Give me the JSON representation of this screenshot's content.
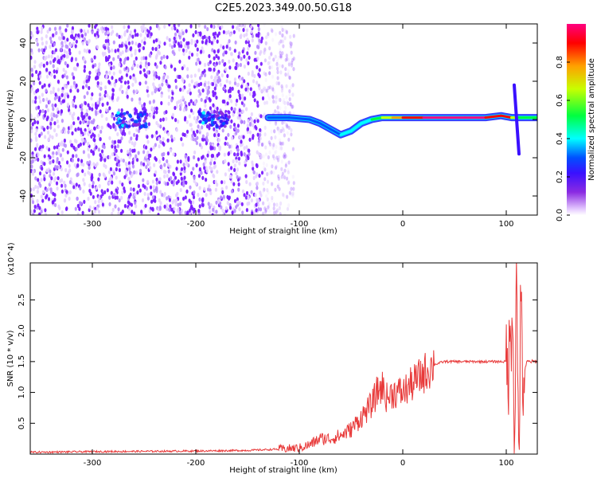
{
  "title": "C2E5.2023.349.00.50.G18",
  "colors": {
    "noise_violet": "#7a1cff",
    "signal_red": "#e8202a",
    "snr_line": "#e83a3a",
    "axis": "#000000"
  },
  "chart_data": [
    {
      "type": "heatmap",
      "xlabel": "Height of straight line (km)",
      "ylabel": "Frequency (Hz)",
      "xlim": [
        -360,
        130
      ],
      "ylim": [
        -50,
        50
      ],
      "x_ticks": [
        -300,
        -200,
        -100,
        0,
        100
      ],
      "y_ticks": [
        -40,
        -20,
        0,
        20,
        40
      ],
      "colorbar": {
        "label": "Normalized spectral amplitude",
        "range": [
          0.0,
          1.0
        ],
        "ticks": [
          "0.0",
          "0.2",
          "0.4",
          "0.6",
          "0.8"
        ],
        "colormap": [
          "#ffffff",
          "#e6ccff",
          "#8a2be2",
          "#3a10ff",
          "#0050ff",
          "#00ffff",
          "#00ff40",
          "#c8ff00",
          "#ffa000",
          "#ff0000",
          "#ff0080"
        ]
      },
      "noise_region_x": [
        -360,
        -135
      ],
      "signal_trace": {
        "x": [
          -130,
          -110,
          -90,
          -80,
          -70,
          -60,
          -50,
          -40,
          -30,
          -20,
          -10,
          0,
          20,
          40,
          60,
          80,
          95,
          105,
          110,
          130
        ],
        "freq": [
          1,
          1,
          0,
          -2,
          -5,
          -8,
          -6,
          -2,
          0,
          1,
          1,
          1,
          1,
          1,
          1,
          1,
          2,
          1,
          1,
          1
        ],
        "amplitude": [
          0.35,
          0.4,
          0.35,
          0.35,
          0.4,
          0.45,
          0.45,
          0.5,
          0.6,
          0.7,
          0.8,
          0.9,
          0.95,
          0.95,
          0.95,
          0.9,
          0.85,
          0.7,
          0.6,
          0.95
        ]
      },
      "spike_x": 110,
      "spike_freq_range": [
        -18,
        18
      ],
      "noise_clusters": [
        {
          "x": -270,
          "freq": 0,
          "amplitude": 0.45
        },
        {
          "x": -255,
          "freq": 0,
          "amplitude": 0.4
        },
        {
          "x": -190,
          "freq": 0,
          "amplitude": 0.45
        },
        {
          "x": -175,
          "freq": 0,
          "amplitude": 0.35
        }
      ]
    },
    {
      "type": "line",
      "xlabel": "Height of straight line (km)",
      "ylabel": "SNR (10 * v/v)",
      "y_multiplier": "(x10^4)",
      "xlim": [
        -360,
        130
      ],
      "ylim": [
        0,
        3.1
      ],
      "x_ticks": [
        -300,
        -200,
        -100,
        0,
        100
      ],
      "y_ticks": [
        0.5,
        1.0,
        1.5,
        2.0,
        2.5
      ],
      "series": [
        {
          "x": [
            -360,
            -300,
            -200,
            -150,
            -120,
            -100,
            -90,
            -80,
            -70,
            -60,
            -50,
            -40,
            -30,
            -25,
            -20,
            -15,
            -10,
            0,
            10,
            20,
            30,
            40,
            60,
            80,
            100,
            103,
            106,
            108,
            110,
            112,
            114,
            116,
            120,
            130
          ],
          "values": [
            0.03,
            0.04,
            0.05,
            0.06,
            0.08,
            0.1,
            0.15,
            0.25,
            0.25,
            0.3,
            0.4,
            0.6,
            0.8,
            1.0,
            1.1,
            0.9,
            1.0,
            1.0,
            1.15,
            1.3,
            1.45,
            1.5,
            1.5,
            1.5,
            1.5,
            1.45,
            2.6,
            0.2,
            2.9,
            0.1,
            2.3,
            1.2,
            1.5,
            1.5
          ]
        }
      ]
    }
  ]
}
